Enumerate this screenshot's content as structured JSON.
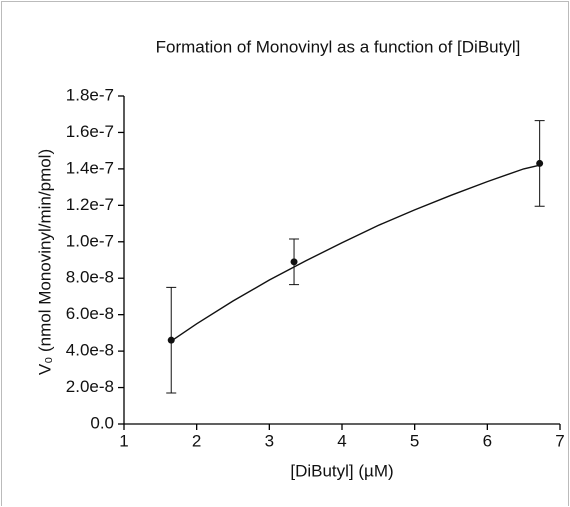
{
  "chart_data": {
    "type": "scatter",
    "title": "Formation of Monovinyl as a function of [DiButyl]",
    "x_label": "[DiButyl] (µM)",
    "y_label": "V₀ (nmol Monovinyl/min/pmol)",
    "xlim": [
      1,
      7
    ],
    "xticks": [
      1,
      2,
      3,
      4,
      5,
      6,
      7
    ],
    "ylim": [
      0,
      1.8e-07
    ],
    "yticks": [
      {
        "value": 0,
        "label": "0.0"
      },
      {
        "value": 2e-08,
        "label": "2.0e-8"
      },
      {
        "value": 4e-08,
        "label": "4.0e-8"
      },
      {
        "value": 6e-08,
        "label": "6.0e-8"
      },
      {
        "value": 8e-08,
        "label": "8.0e-8"
      },
      {
        "value": 1e-07,
        "label": "1.0e-7"
      },
      {
        "value": 1.2e-07,
        "label": "1.2e-7"
      },
      {
        "value": 1.4e-07,
        "label": "1.4e-7"
      },
      {
        "value": 1.6e-07,
        "label": "1.6e-7"
      },
      {
        "value": 1.8e-07,
        "label": "1.8e-7"
      }
    ],
    "color": "#111111",
    "x": [
      1.65,
      3.34,
      6.72
    ],
    "values": [
      4.6e-08,
      8.9e-08,
      1.43e-07
    ],
    "errors": [
      2.9e-08,
      1.25e-08,
      2.35e-08
    ],
    "fit": {
      "x": [
        1.65,
        2.0,
        2.5,
        3.0,
        3.5,
        4.0,
        4.5,
        5.0,
        5.5,
        6.0,
        6.5,
        6.72
      ],
      "values": [
        4.55e-08,
        5.5e-08,
        6.75e-08,
        7.9e-08,
        8.95e-08,
        9.95e-08,
        1.09e-07,
        1.175e-07,
        1.255e-07,
        1.33e-07,
        1.4e-07,
        1.42e-07
      ]
    }
  }
}
